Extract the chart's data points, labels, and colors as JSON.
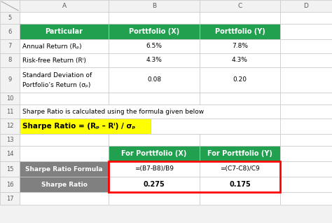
{
  "bg_color": "#f2f2f2",
  "header_green": "#21a050",
  "white": "#ffffff",
  "gray_cell": "#808080",
  "yellow_bg": "#ffff00",
  "red_border": "#ff0000",
  "border_light": "#c8c8c8",
  "border_dark": "#a0a0a0",
  "col_header_bg": "#f2f2f2",
  "col_header_text": "#595959",
  "col_labels": [
    "A",
    "B",
    "C",
    "D"
  ],
  "row_labels": [
    "5",
    "6",
    "7",
    "8",
    "9",
    "10",
    "11",
    "12",
    "13",
    "14",
    "15",
    "16",
    "17"
  ],
  "row6_header": [
    "Particular",
    "Porttfolio (X)",
    "Porttfolio (Y)"
  ],
  "row7": [
    "Annual Return (Rₚ)",
    "6.5%",
    "7.8%"
  ],
  "row8": [
    "Risk-free Return (Rⁱ)",
    "4.3%",
    "4.3%"
  ],
  "row9_line1": "Standard Deviation of",
  "row9_line2": "Portfolio’s Return (σₚ)",
  "row9_b": "0.08",
  "row9_c": "0.20",
  "row11_text": "Sharpe Ratio is calculated using the formula given below",
  "row12_text": "Sharpe Ratio = (Rₚ – Rⁱ) / σₚ",
  "row14_header": [
    "For Porttfolio (X)",
    "For Porttfolio (Y)"
  ],
  "row15_label": "Sharpe Ratio Formula",
  "row15_b": "=(B7-B8)/B9",
  "row15_c": "=(C7-C8)/C9",
  "row16_label": "Sharpe Ratio",
  "row16_b": "0.275",
  "row16_c": "0.175"
}
